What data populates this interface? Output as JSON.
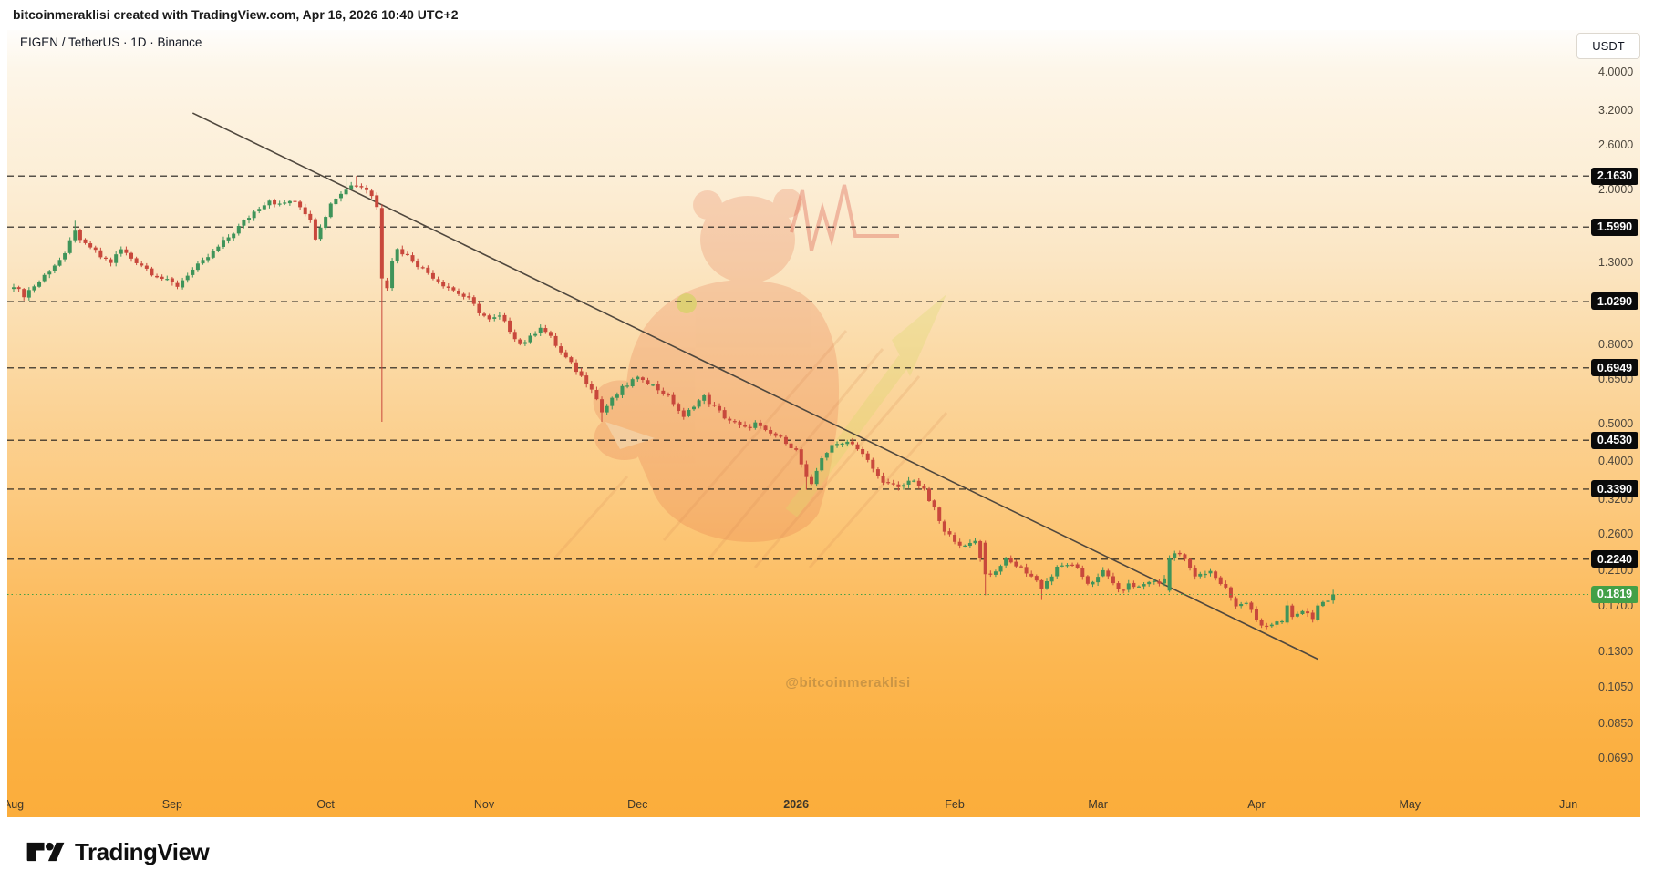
{
  "header": {
    "attribution": "bitcoinmeraklisi created with TradingView.com, Apr 16, 2026 10:40 UTC+2"
  },
  "chart": {
    "title": "EIGEN / TetherUS · 1D · Binance",
    "currency_button": "USDT",
    "watermark_text": "@bitcoinmeraklisi"
  },
  "footer": {
    "brand": "TradingView"
  },
  "colors": {
    "up": "#3f945a",
    "down": "#c8483c",
    "level_line": "#1f1d1a",
    "trend_line": "#50483e",
    "last_price_line": "#43a047",
    "label_bg": "#0a0a0a",
    "label_text": "#ffffff"
  },
  "chart_data": {
    "type": "candlestick",
    "title": "EIGEN / TetherUS · 1D · Binance",
    "symbol": "EIGEN/USDT",
    "exchange": "Binance",
    "interval": "1D",
    "currency": "USDT",
    "price_scale": "logarithmic",
    "y_range": [
      0.064,
      4.35
    ],
    "last_price": 0.1819,
    "alert_levels": [
      2.163,
      1.599,
      1.029,
      0.6949,
      0.453,
      0.339,
      0.224
    ],
    "y_ticks": [
      4.0,
      3.2,
      2.6,
      2.0,
      1.3,
      0.8,
      0.65,
      0.5,
      0.4,
      0.32,
      0.26,
      0.21,
      0.17,
      0.13,
      0.105,
      0.085,
      0.069
    ],
    "x_ticks": [
      {
        "label": "Aug",
        "day": 0
      },
      {
        "label": "Sep",
        "day": 31
      },
      {
        "label": "Oct",
        "day": 61
      },
      {
        "label": "Nov",
        "day": 92
      },
      {
        "label": "Dec",
        "day": 122
      },
      {
        "label": "2026",
        "day": 153,
        "bold": true
      },
      {
        "label": "Feb",
        "day": 184
      },
      {
        "label": "Mar",
        "day": 212
      },
      {
        "label": "Apr",
        "day": 243
      },
      {
        "label": "May",
        "day": 273
      },
      {
        "label": "Jun",
        "day": 304
      }
    ],
    "days_total": 258,
    "trendline": {
      "d1": 35,
      "p1": 3.14,
      "d2": 255,
      "p2": 0.124
    },
    "anchors": [
      [
        0,
        1.12
      ],
      [
        2,
        1.07
      ],
      [
        5,
        1.16
      ],
      [
        8,
        1.28
      ],
      [
        10,
        1.35
      ],
      [
        12,
        1.58
      ],
      [
        13,
        1.46
      ],
      [
        15,
        1.42
      ],
      [
        17,
        1.34
      ],
      [
        19,
        1.3
      ],
      [
        21,
        1.4
      ],
      [
        23,
        1.33
      ],
      [
        25,
        1.28
      ],
      [
        27,
        1.22
      ],
      [
        30,
        1.16
      ],
      [
        32,
        1.13
      ],
      [
        34,
        1.21
      ],
      [
        37,
        1.3
      ],
      [
        40,
        1.42
      ],
      [
        43,
        1.55
      ],
      [
        46,
        1.7
      ],
      [
        48,
        1.8
      ],
      [
        50,
        1.88
      ],
      [
        52,
        1.82
      ],
      [
        54,
        1.87
      ],
      [
        56,
        1.8
      ],
      [
        58,
        1.68
      ],
      [
        59,
        1.5
      ],
      [
        61,
        1.72
      ],
      [
        63,
        1.92
      ],
      [
        65,
        2.02
      ],
      [
        67,
        2.06
      ],
      [
        69,
        2.0
      ],
      [
        70,
        1.93
      ],
      [
        71,
        1.8
      ],
      [
        72,
        1.18
      ],
      [
        73,
        1.13
      ],
      [
        74,
        1.32
      ],
      [
        75,
        1.4
      ],
      [
        77,
        1.35
      ],
      [
        79,
        1.28
      ],
      [
        81,
        1.22
      ],
      [
        84,
        1.14
      ],
      [
        87,
        1.08
      ],
      [
        89,
        1.04
      ],
      [
        91,
        0.97
      ],
      [
        93,
        0.92
      ],
      [
        95,
        0.94
      ],
      [
        97,
        0.87
      ],
      [
        99,
        0.8
      ],
      [
        101,
        0.83
      ],
      [
        103,
        0.89
      ],
      [
        105,
        0.83
      ],
      [
        107,
        0.76
      ],
      [
        109,
        0.71
      ],
      [
        111,
        0.66
      ],
      [
        113,
        0.62
      ],
      [
        115,
        0.535
      ],
      [
        117,
        0.575
      ],
      [
        119,
        0.615
      ],
      [
        121,
        0.645
      ],
      [
        123,
        0.655
      ],
      [
        125,
        0.625
      ],
      [
        127,
        0.6
      ],
      [
        129,
        0.565
      ],
      [
        131,
        0.515
      ],
      [
        133,
        0.56
      ],
      [
        135,
        0.585
      ],
      [
        137,
        0.55
      ],
      [
        139,
        0.52
      ],
      [
        141,
        0.5
      ],
      [
        143,
        0.485
      ],
      [
        145,
        0.5
      ],
      [
        147,
        0.475
      ],
      [
        149,
        0.465
      ],
      [
        151,
        0.45
      ],
      [
        153,
        0.425
      ],
      [
        155,
        0.36
      ],
      [
        156,
        0.345
      ],
      [
        158,
        0.41
      ],
      [
        160,
        0.435
      ],
      [
        162,
        0.45
      ],
      [
        164,
        0.447
      ],
      [
        165,
        0.43
      ],
      [
        167,
        0.4
      ],
      [
        169,
        0.365
      ],
      [
        171,
        0.35
      ],
      [
        173,
        0.34
      ],
      [
        175,
        0.355
      ],
      [
        176,
        0.36
      ],
      [
        178,
        0.335
      ],
      [
        180,
        0.3
      ],
      [
        182,
        0.262
      ],
      [
        184,
        0.252
      ],
      [
        186,
        0.24
      ],
      [
        188,
        0.25
      ],
      [
        190,
        0.205
      ],
      [
        192,
        0.208
      ],
      [
        193,
        0.218
      ],
      [
        194,
        0.222
      ],
      [
        196,
        0.216
      ],
      [
        198,
        0.208
      ],
      [
        200,
        0.197
      ],
      [
        201,
        0.19
      ],
      [
        203,
        0.203
      ],
      [
        204,
        0.212
      ],
      [
        206,
        0.218
      ],
      [
        208,
        0.21
      ],
      [
        210,
        0.195
      ],
      [
        212,
        0.2
      ],
      [
        213,
        0.208
      ],
      [
        215,
        0.196
      ],
      [
        216,
        0.185
      ],
      [
        218,
        0.192
      ],
      [
        220,
        0.19
      ],
      [
        222,
        0.197
      ],
      [
        224,
        0.194
      ],
      [
        225,
        0.2
      ],
      [
        226,
        0.228
      ],
      [
        227,
        0.232
      ],
      [
        229,
        0.225
      ],
      [
        230,
        0.21
      ],
      [
        231,
        0.202
      ],
      [
        233,
        0.206
      ],
      [
        234,
        0.21
      ],
      [
        235,
        0.2
      ],
      [
        237,
        0.19
      ],
      [
        238,
        0.178
      ],
      [
        239,
        0.17
      ],
      [
        241,
        0.172
      ],
      [
        242,
        0.166
      ],
      [
        243,
        0.158
      ],
      [
        244,
        0.152
      ],
      [
        246,
        0.151
      ],
      [
        247,
        0.153
      ],
      [
        248,
        0.155
      ],
      [
        249,
        0.17
      ],
      [
        250,
        0.158
      ],
      [
        251,
        0.163
      ],
      [
        253,
        0.165
      ],
      [
        254,
        0.155
      ],
      [
        255,
        0.168
      ],
      [
        256,
        0.172
      ],
      [
        257,
        0.176
      ],
      [
        258,
        0.1819
      ]
    ],
    "overrides": [
      {
        "d": 12,
        "h": 1.66
      },
      {
        "d": 65,
        "h": 2.16
      },
      {
        "d": 67,
        "h": 2.163
      },
      {
        "d": 72,
        "o": 1.79,
        "h": 1.83,
        "l": 0.505,
        "c": 1.18
      },
      {
        "d": 115,
        "l": 0.505
      },
      {
        "d": 155,
        "l": 0.338
      },
      {
        "d": 190,
        "o": 0.247,
        "h": 0.25,
        "l": 0.181,
        "c": 0.205
      },
      {
        "d": 201,
        "l": 0.176
      },
      {
        "d": 226,
        "o": 0.186,
        "l": 0.184
      },
      {
        "d": 249,
        "o": 0.154,
        "h": 0.175
      },
      {
        "d": 258,
        "h": 0.187,
        "c": 0.1819
      }
    ]
  }
}
